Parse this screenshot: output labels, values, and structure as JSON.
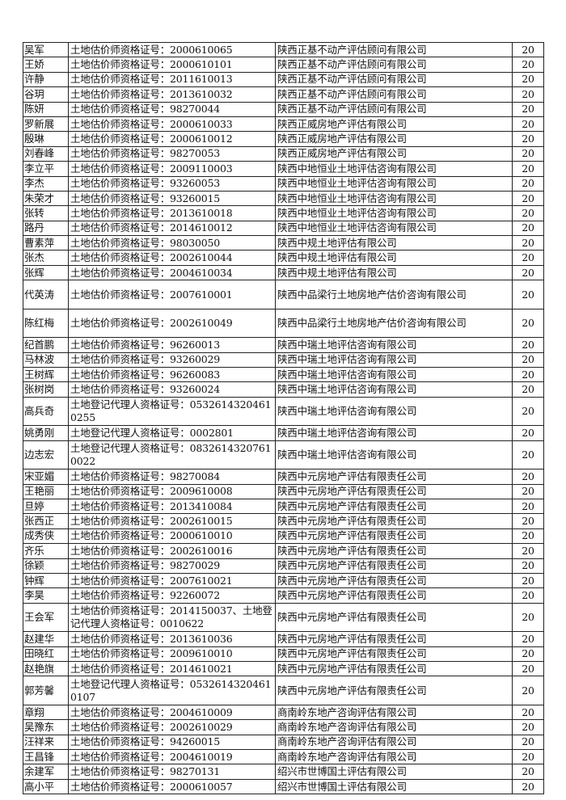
{
  "rows": [
    {
      "name": "吴军",
      "cert": "土地估价师资格证号：2000610065",
      "company": "陕西正基不动产评估顾问有限公司",
      "score": "20"
    },
    {
      "name": "王娇",
      "cert": "土地估价师资格证号：2000610101",
      "company": "陕西正基不动产评估顾问有限公司",
      "score": "20"
    },
    {
      "name": "许静",
      "cert": "土地估价师资格证号：2011610013",
      "company": "陕西正基不动产评估顾问有限公司",
      "score": "20"
    },
    {
      "name": "谷玥",
      "cert": "土地估价师资格证号：2013610032",
      "company": "陕西正基不动产评估顾问有限公司",
      "score": "20"
    },
    {
      "name": "陈妍",
      "cert": "土地估价师资格证号：98270044",
      "company": "陕西正基不动产评估顾问有限公司",
      "score": "20"
    },
    {
      "name": "罗新展",
      "cert": "土地估价师资格证号：2000610033",
      "company": "陕西正威房地产评估有限公司",
      "score": "20"
    },
    {
      "name": "殷琳",
      "cert": "土地估价师资格证号：2000610012",
      "company": "陕西正威房地产评估有限公司",
      "score": "20"
    },
    {
      "name": "刘春峰",
      "cert": "土地估价师资格证号：98270053",
      "company": "陕西正威房地产评估有限公司",
      "score": "20"
    },
    {
      "name": "李立平",
      "cert": "土地估价师资格证号：2009110003",
      "company": "陕西中地恒业土地评估咨询有限公司",
      "score": "20"
    },
    {
      "name": "李杰",
      "cert": "土地估价师资格证号：93260053",
      "company": "陕西中地恒业土地评估咨询有限公司",
      "score": "20"
    },
    {
      "name": "朱荣才",
      "cert": "土地估价师资格证号：93260015",
      "company": "陕西中地恒业土地评估咨询有限公司",
      "score": "20"
    },
    {
      "name": "张转",
      "cert": "土地估价师资格证号：2013610018",
      "company": "陕西中地恒业土地评估咨询有限公司",
      "score": "20"
    },
    {
      "name": "路丹",
      "cert": "土地估价师资格证号：2014610012",
      "company": "陕西中地恒业土地评估咨询有限公司",
      "score": "20"
    },
    {
      "name": "曹素萍",
      "cert": "土地估价师资格证号：98030050",
      "company": "陕西中规土地评估有限公司",
      "score": "20"
    },
    {
      "name": "张杰",
      "cert": "土地估价师资格证号：2002610044",
      "company": "陕西中规土地评估有限公司",
      "score": "20"
    },
    {
      "name": "张辉",
      "cert": "土地估价师资格证号：2004610034",
      "company": "陕西中规土地评估有限公司",
      "score": "20"
    },
    {
      "name": "代英涛",
      "cert": "土地估价师资格证号：2007610001",
      "company": "陕西中品梁行土地房地产估价咨询有限公司",
      "score": "20",
      "tall": true
    },
    {
      "name": "陈红梅",
      "cert": "土地估价师资格证号：2002610049",
      "company": "陕西中品梁行土地房地产估价咨询有限公司",
      "score": "20",
      "tall": true
    },
    {
      "name": "纪首鹏",
      "cert": "土地估价师资格证号：96260013",
      "company": "陕西中瑞土地评估咨询有限公司",
      "score": "20"
    },
    {
      "name": "马林波",
      "cert": "土地估价师资格证号：93260029",
      "company": "陕西中瑞土地评估咨询有限公司",
      "score": "20"
    },
    {
      "name": "王树辉",
      "cert": "土地估价师资格证号：96260083",
      "company": "陕西中瑞土地评估咨询有限公司",
      "score": "20"
    },
    {
      "name": "张树岗",
      "cert": "土地估价师资格证号：93260024",
      "company": "陕西中瑞土地评估咨询有限公司",
      "score": "20"
    },
    {
      "name": "高兵奇",
      "cert": "土地登记代理人资格证号：05326143204610255",
      "company": "陕西中瑞土地评估咨询有限公司",
      "score": "20",
      "tall": true
    },
    {
      "name": "姚勇刚",
      "cert": "土地登记代理人资格证号：0002801",
      "company": "陕西中瑞土地评估咨询有限公司",
      "score": "20"
    },
    {
      "name": "边志宏",
      "cert": "土地登记代理人资格证号：08326143207610022",
      "company": "陕西中瑞土地评估咨询有限公司",
      "score": "20",
      "tall": true
    },
    {
      "name": "宋亚媚",
      "cert": "土地估价师资格证号：98270084",
      "company": "陕西中元房地产评估有限责任公司",
      "score": "20"
    },
    {
      "name": "王艳丽",
      "cert": "土地估价师资格证号：2009610008",
      "company": "陕西中元房地产评估有限责任公司",
      "score": "20"
    },
    {
      "name": "旦婷",
      "cert": "土地估价师资格证号：2013410084",
      "company": "陕西中元房地产评估有限责任公司",
      "score": "20"
    },
    {
      "name": "张西正",
      "cert": "土地估价师资格证号：2002610015",
      "company": "陕西中元房地产评估有限责任公司",
      "score": "20"
    },
    {
      "name": "成秀侠",
      "cert": "土地估价师资格证号：2000610010",
      "company": "陕西中元房地产评估有限责任公司",
      "score": "20"
    },
    {
      "name": "齐乐",
      "cert": "土地估价师资格证号：2002610016",
      "company": "陕西中元房地产评估有限责任公司",
      "score": "20"
    },
    {
      "name": "徐颖",
      "cert": "土地估价师资格证号：98270029",
      "company": "陕西中元房地产评估有限责任公司",
      "score": "20"
    },
    {
      "name": "钟辉",
      "cert": "土地估价师资格证号：2007610021",
      "company": "陕西中元房地产评估有限责任公司",
      "score": "20"
    },
    {
      "name": "李昊",
      "cert": "土地估价师资格证号：92260072",
      "company": "陕西中元房地产评估有限责任公司",
      "score": "20"
    },
    {
      "name": "王会军",
      "cert": "土地估价师资格证号：2014150037、土地登记代理人资格证号：0010622",
      "company": "陕西中元房地产评估有限责任公司",
      "score": "20",
      "tall": true
    },
    {
      "name": "赵建华",
      "cert": "土地估价师资格证号：2013610036",
      "company": "陕西中元房地产评估有限责任公司",
      "score": "20"
    },
    {
      "name": "田晓红",
      "cert": "土地估价师资格证号：2009610010",
      "company": "陕西中元房地产评估有限责任公司",
      "score": "20"
    },
    {
      "name": "赵艳旗",
      "cert": "土地估价师资格证号：2014610021",
      "company": "陕西中元房地产评估有限责任公司",
      "score": "20"
    },
    {
      "name": "郭芳馨",
      "cert": "土地登记代理人资格证号：05326143204610107",
      "company": "陕西中元房地产评估有限责任公司",
      "score": "20",
      "tall": true
    },
    {
      "name": "章翔",
      "cert": "土地估价师资格证号：2004610009",
      "company": "商南岭东地产咨询评估有限公司",
      "score": "20"
    },
    {
      "name": "吴豫东",
      "cert": "土地估价师资格证号：2002610029",
      "company": "商南岭东地产咨询评估有限公司",
      "score": "20"
    },
    {
      "name": "汪祥来",
      "cert": "土地估价师资格证号：94260015",
      "company": "商南岭东地产咨询评估有限公司",
      "score": "20"
    },
    {
      "name": "王昌锋",
      "cert": "土地估价师资格证号：2004610019",
      "company": "商南岭东地产咨询评估有限公司",
      "score": "20"
    },
    {
      "name": "余建军",
      "cert": "土地估价师资格证号：98270131",
      "company": "绍兴市世博国土评估有限公司",
      "score": "20"
    },
    {
      "name": "高小平",
      "cert": "土地估价师资格证号：2000610057",
      "company": "绍兴市世博国土评估有限公司",
      "score": "20"
    }
  ]
}
